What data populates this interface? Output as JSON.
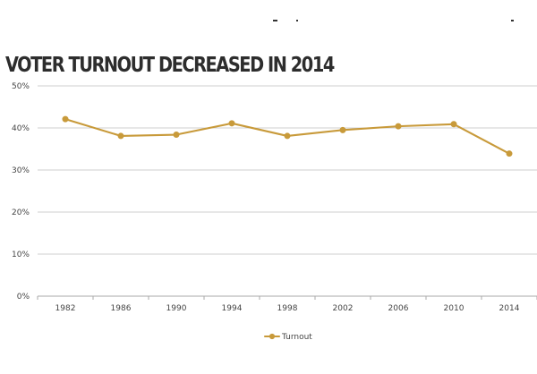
{
  "chart_data": {
    "type": "line",
    "title": "VOTER TURNOUT DECREASED IN 2014",
    "xlabel": "",
    "ylabel": "",
    "categories": [
      "1982",
      "1986",
      "1990",
      "1994",
      "1998",
      "2002",
      "2006",
      "2010",
      "2014"
    ],
    "y_ticks": [
      "0%",
      "10%",
      "20%",
      "30%",
      "40%",
      "50%"
    ],
    "y_tick_values": [
      0,
      10,
      20,
      30,
      40,
      50
    ],
    "ylim": [
      0,
      50
    ],
    "grid": true,
    "legend": "bottom-center",
    "series": [
      {
        "name": "Turnout",
        "values": [
          42.1,
          38.1,
          38.4,
          41.1,
          38.1,
          39.5,
          40.4,
          40.9,
          33.9
        ]
      }
    ]
  },
  "colors": {
    "series": "#c89a3a",
    "grid": "#cfcfcf",
    "axis": "#a8a8a8",
    "title": "#2d2d2d",
    "text": "#444444"
  }
}
